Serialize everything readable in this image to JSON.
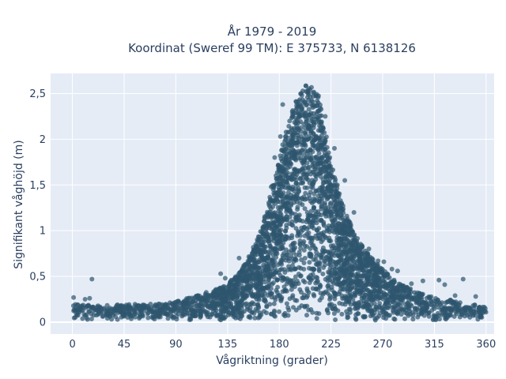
{
  "chart_data": {
    "type": "scatter",
    "title_line1": "År 1979 - 2019",
    "title_line2": "Koordinat (Sweref 99 TM): E 375733, N 6138126",
    "xlabel": "Vågriktning (grader)",
    "ylabel": "Signifikant våghöjd (m)",
    "xlim": [
      -19,
      367
    ],
    "ylim": [
      -0.13,
      2.72
    ],
    "xticks": [
      0,
      45,
      90,
      135,
      180,
      225,
      270,
      315,
      360
    ],
    "xtick_labels": [
      "0",
      "45",
      "90",
      "135",
      "180",
      "225",
      "270",
      "315",
      "360"
    ],
    "yticks": [
      0,
      0.5,
      1,
      1.5,
      2,
      2.5
    ],
    "ytick_labels": [
      "0",
      "0,5",
      "1",
      "1,5",
      "2",
      "2,5"
    ],
    "grid": true,
    "marker_color": "#2e566e",
    "envelope": {
      "direction": [
        0,
        10,
        20,
        40,
        60,
        80,
        95,
        110,
        125,
        135,
        145,
        155,
        165,
        175,
        185,
        195,
        205,
        210,
        215,
        225,
        235,
        245,
        255,
        265,
        275,
        285,
        300,
        315,
        330,
        345,
        360
      ],
      "max_height": [
        0.2,
        0.2,
        0.18,
        0.19,
        0.2,
        0.2,
        0.24,
        0.3,
        0.36,
        0.42,
        0.55,
        0.75,
        1.05,
        1.55,
        2.05,
        2.45,
        2.62,
        2.6,
        2.45,
        1.75,
        1.3,
        0.98,
        0.78,
        0.64,
        0.52,
        0.42,
        0.33,
        0.27,
        0.24,
        0.2,
        0.17
      ]
    },
    "outliers": [
      {
        "x": 17,
        "y": 0.47
      },
      {
        "x": 1,
        "y": 0.27
      },
      {
        "x": 11,
        "y": 0.25
      },
      {
        "x": 15,
        "y": 0.26
      },
      {
        "x": 129,
        "y": 0.53
      },
      {
        "x": 133,
        "y": 0.48
      },
      {
        "x": 145,
        "y": 0.7
      },
      {
        "x": 161,
        "y": 0.88
      },
      {
        "x": 166,
        "y": 0.98
      },
      {
        "x": 173,
        "y": 1.48
      },
      {
        "x": 176,
        "y": 1.8
      },
      {
        "x": 181,
        "y": 2.03
      },
      {
        "x": 183,
        "y": 2.38
      },
      {
        "x": 189,
        "y": 2.2
      },
      {
        "x": 214,
        "y": 2.4
      },
      {
        "x": 220,
        "y": 2.25
      },
      {
        "x": 228,
        "y": 1.9
      },
      {
        "x": 237,
        "y": 1.55
      },
      {
        "x": 245,
        "y": 1.2
      },
      {
        "x": 258,
        "y": 0.8
      },
      {
        "x": 266,
        "y": 0.67
      },
      {
        "x": 271,
        "y": 0.66
      },
      {
        "x": 278,
        "y": 0.58
      },
      {
        "x": 283,
        "y": 0.56
      },
      {
        "x": 295,
        "y": 0.42
      },
      {
        "x": 305,
        "y": 0.45
      },
      {
        "x": 319,
        "y": 0.46
      },
      {
        "x": 324,
        "y": 0.41
      },
      {
        "x": 333,
        "y": 0.29
      },
      {
        "x": 340,
        "y": 0.47
      },
      {
        "x": 351,
        "y": 0.28
      }
    ]
  }
}
